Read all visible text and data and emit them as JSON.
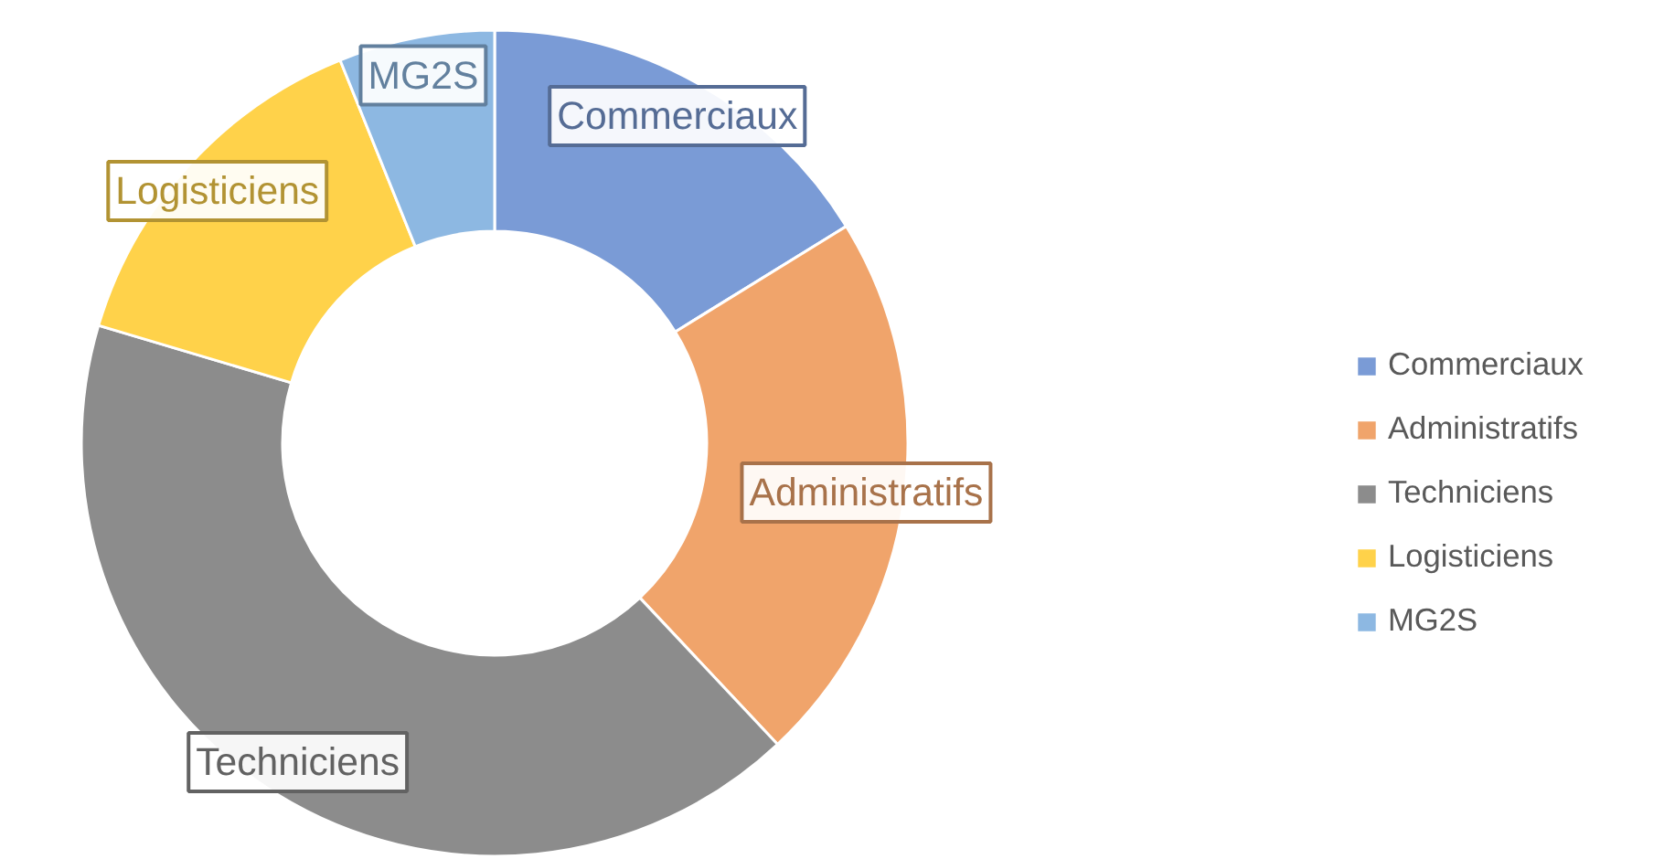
{
  "chart_data": {
    "type": "donut",
    "categories": [
      "Commerciaux",
      "Administratifs",
      "Techniciens",
      "Logisticiens",
      "MG2S"
    ],
    "values": [
      16.2,
      21.8,
      41.6,
      14.3,
      6.1
    ],
    "colors": [
      "#7a9bd6",
      "#f0a46b",
      "#8c8c8c",
      "#ffd24a",
      "#8db8e2"
    ],
    "legend": "right"
  }
}
